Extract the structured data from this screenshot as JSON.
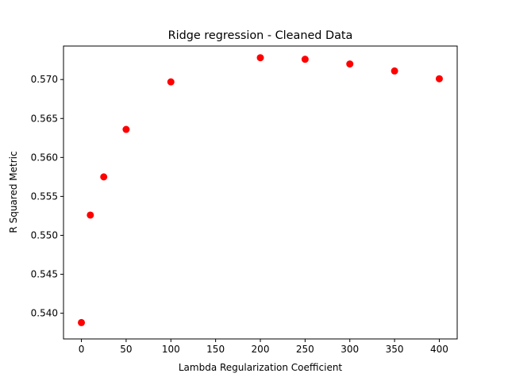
{
  "chart_data": {
    "type": "scatter",
    "title": "Ridge regression - Cleaned Data",
    "xlabel": "Lambda Regularization Coefficient",
    "ylabel": "R Squared Metric",
    "xlim": [
      -20,
      420
    ],
    "ylim": [
      0.5367,
      0.5743
    ],
    "xticks": [
      "0",
      "50",
      "100",
      "150",
      "200",
      "250",
      "300",
      "350",
      "400"
    ],
    "yticks": [
      "0.540",
      "0.545",
      "0.550",
      "0.555",
      "0.560",
      "0.565",
      "0.570"
    ],
    "marker_color": "#ff0000",
    "grid": false,
    "series": [
      {
        "x": [
          0,
          10,
          25,
          50,
          100,
          200,
          250,
          300,
          350,
          400
        ],
        "y": [
          0.5388,
          0.5526,
          0.5575,
          0.5636,
          0.5697,
          0.5728,
          0.5726,
          0.572,
          0.5711,
          0.5701
        ]
      }
    ]
  }
}
